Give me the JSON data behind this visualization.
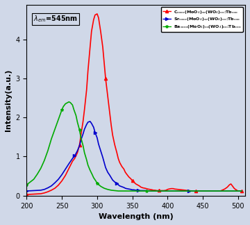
{
  "title_annotation": "λ_em=545nm",
  "xlabel": "Wavelength (nm)",
  "ylabel": "Intensity(a.u.)",
  "xlim": [
    200,
    510
  ],
  "ylim_min": 0,
  "background_color": "#d0d8e8",
  "legend_entries": [
    "Cₓₓₓₓ(MoO₄)ₓₓ(WO₄)ₓₓ:Tbₓₓₓ",
    "Srₓₓₓₓ(MoO₄)ₓₓ(WO₄)ₓₓ:Tbₓₓₓ",
    "Baₓₓₓₓ(MoO₄)ₓₓ(WO₄)ₓₓ:Tbₓₓₓ"
  ],
  "legend_colors": [
    "#ff0000",
    "#0000ff",
    "#00aa00"
  ],
  "legend_markers": [
    "^",
    ">",
    "*"
  ],
  "red_x": [
    200,
    210,
    220,
    225,
    230,
    235,
    240,
    245,
    250,
    255,
    260,
    265,
    268,
    270,
    272,
    275,
    277,
    280,
    282,
    285,
    287,
    290,
    292,
    295,
    297,
    300,
    302,
    305,
    308,
    310,
    312,
    315,
    318,
    320,
    322,
    325,
    328,
    330,
    332,
    335,
    338,
    340,
    342,
    345,
    348,
    350,
    352,
    355,
    358,
    360,
    362,
    365,
    368,
    370,
    372,
    375,
    378,
    380,
    382,
    385,
    388,
    390,
    392,
    395,
    398,
    400,
    402,
    405,
    408,
    410,
    415,
    420,
    425,
    430,
    435,
    440,
    445,
    450,
    455,
    460,
    465,
    470,
    475,
    480,
    482,
    485,
    488,
    490,
    495,
    500,
    505
  ],
  "red_y": [
    0.03,
    0.04,
    0.05,
    0.07,
    0.1,
    0.14,
    0.19,
    0.27,
    0.38,
    0.52,
    0.7,
    0.88,
    0.95,
    1.02,
    1.1,
    1.3,
    1.55,
    1.9,
    2.2,
    2.7,
    3.2,
    3.8,
    4.2,
    4.5,
    4.62,
    4.65,
    4.55,
    4.2,
    3.8,
    3.4,
    3.0,
    2.55,
    2.1,
    1.8,
    1.55,
    1.3,
    1.1,
    0.95,
    0.85,
    0.75,
    0.68,
    0.6,
    0.55,
    0.48,
    0.43,
    0.38,
    0.35,
    0.3,
    0.27,
    0.25,
    0.22,
    0.2,
    0.19,
    0.18,
    0.17,
    0.16,
    0.15,
    0.14,
    0.14,
    0.13,
    0.13,
    0.13,
    0.13,
    0.13,
    0.14,
    0.16,
    0.17,
    0.18,
    0.18,
    0.17,
    0.16,
    0.15,
    0.14,
    0.13,
    0.12,
    0.12,
    0.12,
    0.12,
    0.12,
    0.12,
    0.12,
    0.12,
    0.12,
    0.16,
    0.18,
    0.22,
    0.28,
    0.3,
    0.18,
    0.12,
    0.12
  ],
  "blue_x": [
    200,
    210,
    220,
    225,
    230,
    235,
    240,
    245,
    250,
    255,
    260,
    265,
    268,
    270,
    272,
    275,
    277,
    280,
    282,
    285,
    287,
    290,
    292,
    295,
    297,
    300,
    302,
    305,
    308,
    310,
    312,
    315,
    318,
    320,
    322,
    325,
    328,
    330,
    332,
    335,
    338,
    340,
    342,
    345,
    348,
    350,
    352,
    355,
    358,
    360,
    362,
    365,
    368,
    370,
    375,
    380,
    390,
    400,
    410,
    420,
    430,
    440,
    450,
    460,
    470,
    480,
    490,
    500,
    505
  ],
  "blue_y": [
    0.12,
    0.13,
    0.14,
    0.16,
    0.2,
    0.25,
    0.33,
    0.42,
    0.54,
    0.68,
    0.82,
    0.95,
    1.02,
    1.08,
    1.15,
    1.28,
    1.42,
    1.58,
    1.7,
    1.82,
    1.88,
    1.9,
    1.85,
    1.75,
    1.62,
    1.48,
    1.32,
    1.15,
    0.98,
    0.85,
    0.72,
    0.6,
    0.52,
    0.46,
    0.4,
    0.35,
    0.31,
    0.28,
    0.25,
    0.23,
    0.21,
    0.19,
    0.18,
    0.17,
    0.16,
    0.15,
    0.15,
    0.14,
    0.14,
    0.13,
    0.13,
    0.13,
    0.13,
    0.13,
    0.12,
    0.12,
    0.12,
    0.12,
    0.12,
    0.12,
    0.12,
    0.12,
    0.12,
    0.12,
    0.12,
    0.12,
    0.12,
    0.12,
    0.12
  ],
  "green_x": [
    200,
    210,
    215,
    220,
    225,
    230,
    235,
    240,
    245,
    248,
    250,
    252,
    255,
    258,
    260,
    262,
    265,
    267,
    270,
    272,
    275,
    277,
    280,
    282,
    285,
    287,
    290,
    293,
    295,
    298,
    300,
    305,
    310,
    315,
    320,
    325,
    330,
    340,
    350,
    360,
    370,
    380,
    390,
    400,
    420,
    440,
    460,
    480,
    500,
    505
  ],
  "green_y": [
    0.28,
    0.42,
    0.55,
    0.7,
    0.9,
    1.15,
    1.45,
    1.7,
    1.95,
    2.1,
    2.2,
    2.28,
    2.35,
    2.38,
    2.4,
    2.38,
    2.32,
    2.2,
    2.05,
    1.88,
    1.68,
    1.48,
    1.28,
    1.1,
    0.92,
    0.78,
    0.65,
    0.54,
    0.46,
    0.38,
    0.32,
    0.24,
    0.19,
    0.16,
    0.14,
    0.13,
    0.12,
    0.12,
    0.12,
    0.12,
    0.12,
    0.12,
    0.12,
    0.12,
    0.12,
    0.12,
    0.12,
    0.12,
    0.12,
    0.12
  ]
}
